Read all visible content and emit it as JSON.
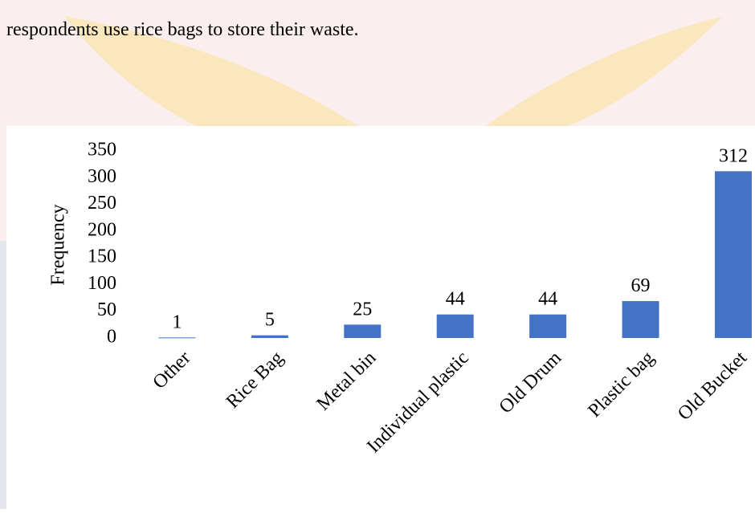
{
  "text": "respondents use rice bags to store their waste.",
  "chart_data": {
    "type": "bar",
    "y_label": "Frequency",
    "categories": [
      "Other",
      "Rice Bag",
      "Metal bin",
      "Individual plastic",
      "Old Drum",
      "Plastic bag",
      "Old Bucket"
    ],
    "values": [
      1,
      5,
      25,
      44,
      44,
      69,
      312
    ],
    "color": "#4472c4",
    "ylim": [
      0,
      350
    ],
    "yticks": [
      0,
      50,
      100,
      150,
      200,
      250,
      300,
      350
    ],
    "grid": false
  }
}
